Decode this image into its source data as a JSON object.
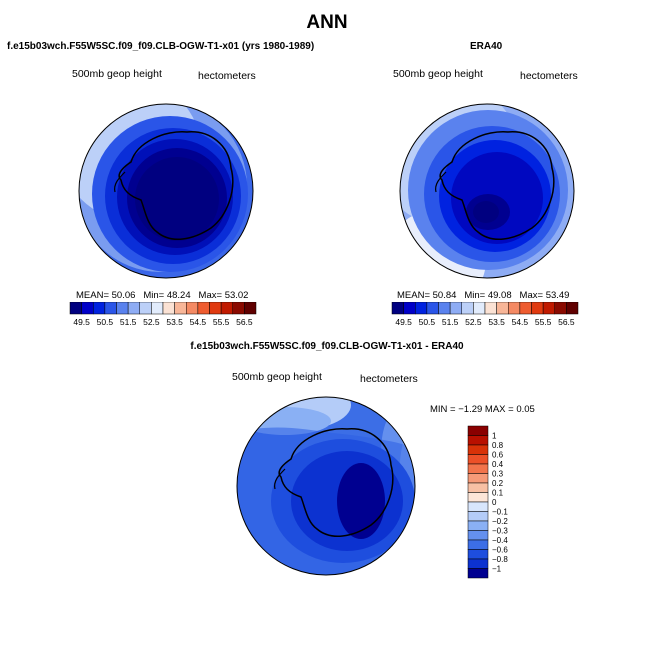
{
  "title": "ANN",
  "panels": [
    {
      "case": "f.e15b03wch.F55W5SC.f09_f09.CLB-OGW-T1-x01 (yrs 1980-1989)",
      "field": "500mb geop height",
      "units": "hectometers",
      "stats": {
        "mean_label": "MEAN=",
        "mean": "50.06",
        "min_label": "Min=",
        "min": "48.24",
        "max_label": "Max=",
        "max": "53.02"
      }
    },
    {
      "case": "ERA40",
      "field": "500mb geop height",
      "units": "hectometers",
      "stats": {
        "mean_label": "MEAN=",
        "mean": "50.84",
        "min_label": "Min=",
        "min": "49.08",
        "max_label": "Max=",
        "max": "53.49"
      }
    }
  ],
  "horizontal_colorbar": {
    "levels": [
      "49.5",
      "50.5",
      "51.5",
      "52.5",
      "53.5",
      "54.5",
      "55.5",
      "56.5"
    ],
    "colors": [
      "#000080",
      "#0000c8",
      "#0022e0",
      "#2a55e8",
      "#5a82ee",
      "#8eacf4",
      "#bcd0f8",
      "#e2ecfc",
      "#fbe2d4",
      "#f8b698",
      "#f48a64",
      "#ee5c30",
      "#e03a10",
      "#c01a00",
      "#8a0a00",
      "#600000"
    ]
  },
  "diff_panel": {
    "case": "f.e15b03wch.F55W5SC.f09_f09.CLB-OGW-T1-x01 - ERA40",
    "field": "500mb geop height",
    "units": "hectometers",
    "min_max": "MIN =  −1.29  MAX =   0.05",
    "colorbar": {
      "labels": [
        "1",
        "0.8",
        "0.6",
        "0.4",
        "0.3",
        "0.2",
        "0.1",
        "0",
        "−0.1",
        "−0.2",
        "−0.3",
        "−0.4",
        "−0.6",
        "−0.8",
        "−1"
      ],
      "colors": [
        "#8a0000",
        "#b81000",
        "#d83208",
        "#ec5028",
        "#f2744c",
        "#f69a78",
        "#f8c0a4",
        "#fde6d8",
        "#d8e6fc",
        "#b4ccf8",
        "#8ab0f4",
        "#6490ee",
        "#3c6ee6",
        "#1e4ede",
        "#0c32d0",
        "#000090"
      ]
    }
  }
}
